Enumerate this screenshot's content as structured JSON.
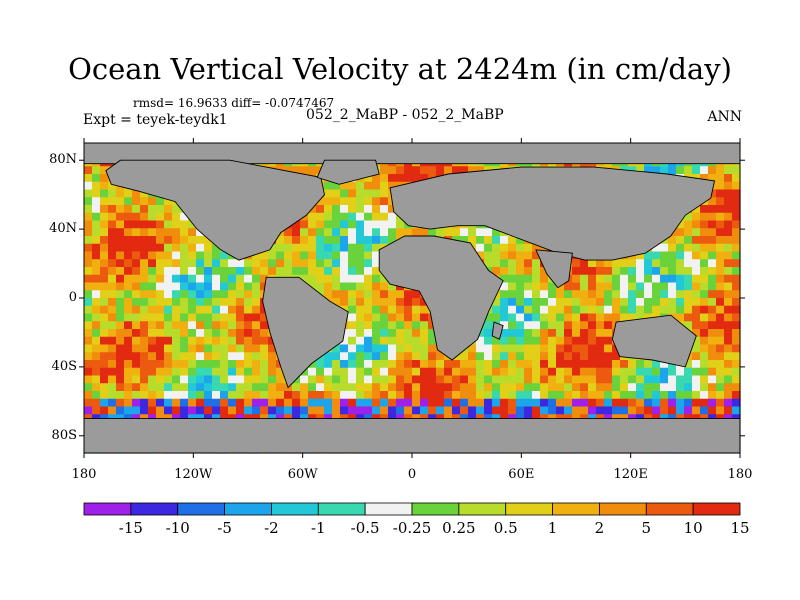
{
  "title": "Ocean Vertical Velocity at 2424m (in cm/day)",
  "stats": "rmsd= 16.9633 diff= -0.0747467",
  "expt": "Expt = teyek-teydk1",
  "comparison": "052_2_MaBP - 052_2_MaBP",
  "season": "ANN",
  "map": {
    "land_color": "#9b9b9b",
    "lon_range": [
      -180,
      180
    ],
    "lat_range": [
      -90,
      90
    ],
    "y_ticks": [
      {
        "value": 80,
        "label": "80N"
      },
      {
        "value": 40,
        "label": "40N"
      },
      {
        "value": 0,
        "label": "0"
      },
      {
        "value": -40,
        "label": "40S"
      },
      {
        "value": -80,
        "label": "80S"
      }
    ],
    "x_ticks": [
      {
        "value": -180,
        "label": "180"
      },
      {
        "value": -120,
        "label": "120W"
      },
      {
        "value": -60,
        "label": "60W"
      },
      {
        "value": 0,
        "label": "0"
      },
      {
        "value": 60,
        "label": "60E"
      },
      {
        "value": 120,
        "label": "120E"
      },
      {
        "value": 180,
        "label": "180"
      }
    ]
  },
  "colorbar": {
    "colors": [
      "#9f20e8",
      "#3c28e0",
      "#1f6fe6",
      "#1ca5ea",
      "#22c8d8",
      "#38d8b0",
      "#f2f2f2",
      "#6ad23a",
      "#b8dc2c",
      "#e2cf18",
      "#f0b010",
      "#f08d0c",
      "#ec5a10",
      "#e22a10"
    ],
    "labels": [
      "-15",
      "-10",
      "-5",
      "-2",
      "-1",
      "-0.5",
      "-0.25",
      "0.25",
      "0.5",
      "1",
      "2",
      "5",
      "10",
      "15"
    ]
  }
}
